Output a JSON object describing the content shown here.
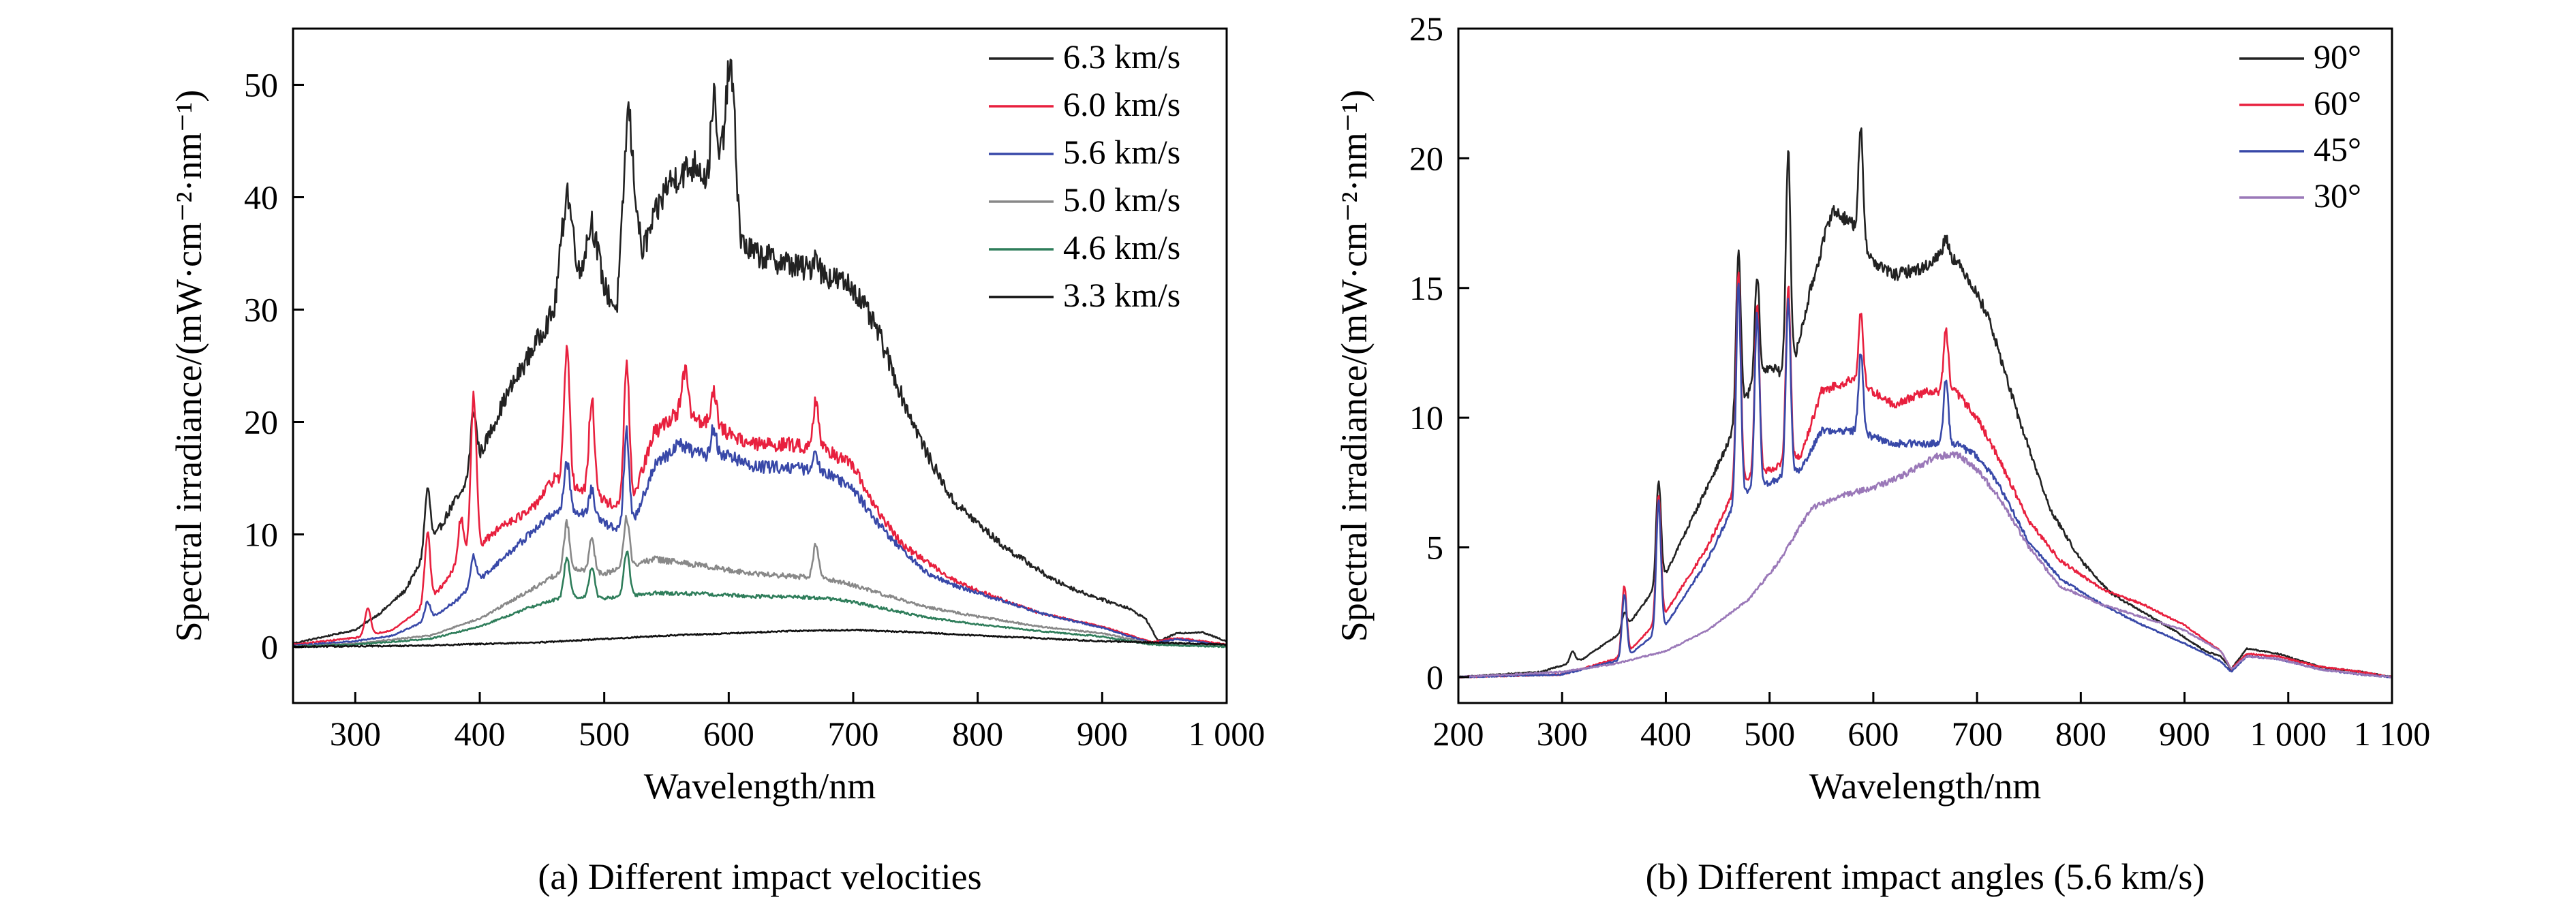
{
  "chart_data": [
    {
      "type": "line",
      "xlabel": "Wavelength/nm",
      "ylabel": "Spectral irradiance/(mW·cm⁻²·nm⁻¹)",
      "caption": "(a) Different impact velocities",
      "xlim": [
        250,
        1000
      ],
      "ylim": [
        -5,
        55
      ],
      "xticks": [
        300,
        400,
        500,
        600,
        700,
        800,
        900,
        1000
      ],
      "xtick_labels": [
        "300",
        "400",
        "500",
        "600",
        "700",
        "800",
        "900",
        "1 000"
      ],
      "yticks": [
        0,
        10,
        20,
        30,
        40,
        50
      ],
      "ytick_labels": [
        "0",
        "10",
        "20",
        "30",
        "40",
        "50"
      ],
      "grid": false,
      "legend_position": "top-right",
      "series": [
        {
          "name": "6.3 km/s",
          "color": "#222222",
          "x": [
            250,
            300,
            320,
            340,
            360,
            380,
            400,
            420,
            440,
            460,
            470,
            480,
            490,
            500,
            510,
            520,
            530,
            540,
            550,
            560,
            575,
            590,
            600,
            610,
            620,
            650,
            680,
            700,
            720,
            740,
            760,
            780,
            800,
            820,
            840,
            860,
            880,
            900,
            920,
            935,
            945,
            960,
            980,
            1000
          ],
          "y": [
            0.3,
            1.5,
            3,
            5,
            9,
            13,
            17,
            22,
            26,
            30,
            41,
            33,
            38,
            32,
            30,
            46,
            35,
            38,
            41,
            42,
            43,
            40,
            50,
            36,
            35,
            34,
            33,
            32,
            28,
            22,
            17,
            13,
            11,
            9,
            7.5,
            6,
            5,
            4.2,
            3.5,
            2.5,
            0.5,
            1.2,
            1.3,
            0.5
          ],
          "peaks": [
            [
              358,
              14
            ],
            [
              385,
              13.5
            ],
            [
              395,
              21
            ],
            [
              470,
              41
            ],
            [
              490,
              38
            ],
            [
              518,
              46
            ],
            [
              588,
              49
            ],
            [
              603,
              50
            ],
            [
              670,
              35
            ]
          ]
        },
        {
          "name": "6.0 km/s",
          "color": "#e8203e",
          "x": [
            250,
            300,
            330,
            360,
            380,
            400,
            420,
            440,
            460,
            480,
            500,
            520,
            540,
            560,
            580,
            600,
            620,
            650,
            680,
            700,
            720,
            740,
            760,
            780,
            800,
            850,
            900,
            940,
            960,
            1000
          ],
          "y": [
            0.2,
            0.8,
            1.5,
            4,
            7,
            9,
            11,
            12,
            15,
            14,
            13,
            12,
            19,
            21,
            20,
            19,
            18,
            18,
            17.5,
            16,
            12,
            9,
            7.5,
            6,
            5,
            3,
            1.8,
            0.4,
            0.8,
            0.2
          ],
          "peaks": [
            [
              310,
              3.5
            ],
            [
              358,
              10
            ],
            [
              385,
              11.5
            ],
            [
              395,
              22.5
            ],
            [
              470,
              26
            ],
            [
              490,
              22
            ],
            [
              518,
              25
            ],
            [
              565,
              24.5
            ],
            [
              588,
              23
            ],
            [
              670,
              22
            ]
          ]
        },
        {
          "name": "5.6 km/s",
          "color": "#3848a8",
          "x": [
            250,
            300,
            330,
            360,
            380,
            400,
            420,
            440,
            460,
            480,
            500,
            520,
            540,
            560,
            580,
            600,
            620,
            650,
            680,
            700,
            720,
            740,
            760,
            780,
            800,
            850,
            900,
            940,
            960,
            1000
          ],
          "y": [
            0.1,
            0.5,
            1,
            2.5,
            4,
            6,
            8,
            10,
            12,
            12,
            11,
            10,
            16,
            18,
            17,
            17,
            16,
            16,
            15.5,
            14,
            11,
            8.5,
            6.5,
            5.5,
            4.8,
            3,
            1.7,
            0.3,
            0.7,
            0.1
          ],
          "peaks": [
            [
              358,
              4
            ],
            [
              395,
              8
            ],
            [
              470,
              16.5
            ],
            [
              490,
              14
            ],
            [
              518,
              19
            ],
            [
              588,
              19.5
            ],
            [
              670,
              17
            ]
          ]
        },
        {
          "name": "5.0 km/s",
          "color": "#888888",
          "x": [
            250,
            300,
            360,
            400,
            440,
            470,
            500,
            540,
            580,
            620,
            660,
            680,
            700,
            720,
            760,
            800,
            850,
            900,
            940,
            1000
          ],
          "y": [
            0,
            0.3,
            1,
            2.5,
            5,
            7,
            6.5,
            7.8,
            7.2,
            6.5,
            6.2,
            6,
            5.5,
            4.8,
            3.5,
            2.7,
            1.8,
            1.2,
            0.3,
            0.1
          ],
          "peaks": [
            [
              470,
              11
            ],
            [
              490,
              9.5
            ],
            [
              518,
              11.5
            ],
            [
              670,
              9
            ]
          ]
        },
        {
          "name": "4.6 km/s",
          "color": "#2e7d5a",
          "x": [
            250,
            300,
            360,
            400,
            440,
            470,
            500,
            540,
            580,
            620,
            660,
            680,
            700,
            720,
            760,
            800,
            850,
            900,
            940,
            1000
          ],
          "y": [
            0,
            0.2,
            0.7,
            1.8,
            3.5,
            4.5,
            4.3,
            4.8,
            4.7,
            4.5,
            4.4,
            4.3,
            4,
            3.5,
            2.6,
            2,
            1.4,
            0.9,
            0.2,
            0
          ],
          "peaks": [
            [
              470,
              8
            ],
            [
              490,
              7
            ],
            [
              518,
              8.5
            ]
          ]
        },
        {
          "name": "3.3 km/s",
          "color": "#111111",
          "x": [
            250,
            350,
            450,
            550,
            650,
            700,
            750,
            800,
            900,
            1000
          ],
          "y": [
            0,
            0.1,
            0.4,
            1,
            1.4,
            1.5,
            1.3,
            1,
            0.5,
            0.2
          ],
          "peaks": []
        }
      ]
    },
    {
      "type": "line",
      "xlabel": "Wavelength/nm",
      "ylabel": "Spectral irradiance/(mW·cm⁻²·nm⁻¹)",
      "caption": "(b) Different impact angles (5.6 km/s)",
      "xlim": [
        200,
        1100
      ],
      "ylim": [
        -1,
        25
      ],
      "xticks": [
        200,
        300,
        400,
        500,
        600,
        700,
        800,
        900,
        1000,
        1100
      ],
      "xtick_labels": [
        "200",
        "300",
        "400",
        "500",
        "600",
        "700",
        "800",
        "900",
        "1 000",
        "1 100"
      ],
      "yticks": [
        0,
        5,
        10,
        15,
        20,
        25
      ],
      "ytick_labels": [
        "0",
        "5",
        "10",
        "15",
        "20",
        "25"
      ],
      "grid": false,
      "legend_position": "top-right",
      "series": [
        {
          "name": "90°",
          "color": "#222222",
          "x": [
            200,
            280,
            320,
            360,
            400,
            430,
            460,
            480,
            500,
            520,
            540,
            560,
            580,
            600,
            620,
            650,
            670,
            690,
            710,
            740,
            770,
            800,
            830,
            860,
            890,
            920,
            935,
            945,
            960,
            990,
            1030,
            1070,
            1100
          ],
          "y": [
            0,
            0.2,
            0.7,
            1.8,
            4,
            6.5,
            9,
            11,
            12,
            11.5,
            15,
            18,
            17.5,
            16,
            15.5,
            15.8,
            16.5,
            15.5,
            14,
            10,
            6.5,
            4.5,
            3.2,
            2.5,
            1.8,
            1,
            0.8,
            0.3,
            1.1,
            0.9,
            0.4,
            0.2,
            0
          ],
          "peaks": [
            [
              310,
              1
            ],
            [
              360,
              2.5
            ],
            [
              393,
              7.6
            ],
            [
              470,
              16.4
            ],
            [
              488,
              15.4
            ],
            [
              518,
              20.4
            ],
            [
              588,
              21
            ],
            [
              670,
              17
            ]
          ]
        },
        {
          "name": "60°",
          "color": "#e8203e",
          "x": [
            200,
            300,
            360,
            400,
            440,
            470,
            500,
            530,
            550,
            580,
            620,
            650,
            680,
            700,
            720,
            750,
            780,
            820,
            860,
            900,
            935,
            945,
            960,
            990,
            1030,
            1070,
            1100
          ],
          "y": [
            0,
            0.1,
            0.8,
            2.5,
            5,
            7.5,
            8,
            8.5,
            11,
            11.5,
            10.5,
            11,
            11,
            10,
            8.5,
            6,
            4.5,
            3.4,
            2.8,
            2,
            1,
            0.3,
            0.9,
            0.8,
            0.4,
            0.2,
            0
          ],
          "peaks": [
            [
              360,
              3.5
            ],
            [
              393,
              7
            ],
            [
              470,
              15.5
            ],
            [
              488,
              14.5
            ],
            [
              518,
              15
            ],
            [
              588,
              14
            ],
            [
              670,
              13.4
            ]
          ]
        },
        {
          "name": "45°",
          "color": "#3848a8",
          "x": [
            200,
            300,
            360,
            400,
            440,
            470,
            500,
            530,
            550,
            580,
            620,
            650,
            680,
            700,
            720,
            750,
            780,
            820,
            860,
            900,
            935,
            945,
            960,
            990,
            1030,
            1070,
            1100
          ],
          "y": [
            0,
            0.1,
            0.7,
            2,
            4.5,
            7,
            7.5,
            8,
            9.5,
            9.5,
            9,
            9,
            9,
            8.5,
            7.5,
            5.2,
            3.8,
            2.8,
            2,
            1.3,
            0.6,
            0.2,
            0.8,
            0.7,
            0.3,
            0.1,
            0
          ],
          "peaks": [
            [
              360,
              3.2
            ],
            [
              393,
              6.8
            ],
            [
              470,
              15
            ],
            [
              488,
              14
            ],
            [
              518,
              14.5
            ],
            [
              588,
              12.5
            ],
            [
              670,
              11.5
            ]
          ]
        },
        {
          "name": "30°",
          "color": "#9a78b8",
          "x": [
            200,
            300,
            350,
            400,
            440,
            480,
            510,
            540,
            570,
            600,
            630,
            660,
            680,
            700,
            720,
            750,
            780,
            820,
            860,
            900,
            935,
            945,
            960,
            990,
            1030,
            1070,
            1100
          ],
          "y": [
            0,
            0.2,
            0.5,
            1,
            1.8,
            3,
            4.5,
            6.5,
            7,
            7.3,
            7.8,
            8.5,
            8.6,
            8,
            7,
            5,
            3.5,
            2.8,
            2.3,
            1.8,
            1,
            0.3,
            0.8,
            0.7,
            0.3,
            0.1,
            0
          ],
          "peaks": []
        }
      ]
    }
  ]
}
